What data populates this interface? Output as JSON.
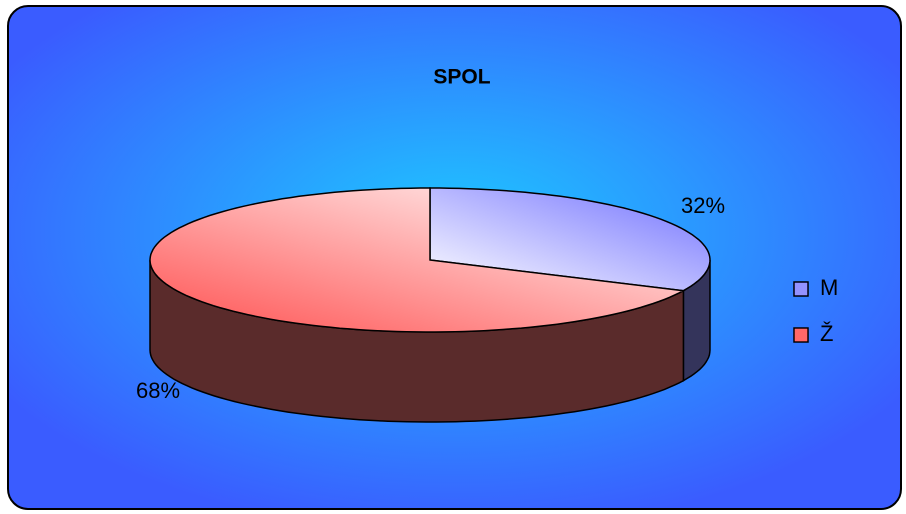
{
  "chart_data": {
    "type": "pie",
    "title": "SPOL",
    "categories": [
      "M",
      "Ž"
    ],
    "values": [
      32,
      68
    ],
    "value_labels": [
      "32%",
      "68%"
    ],
    "colors": [
      "#7070ff",
      "#ff5050"
    ],
    "legend": "right",
    "three_d": true
  }
}
